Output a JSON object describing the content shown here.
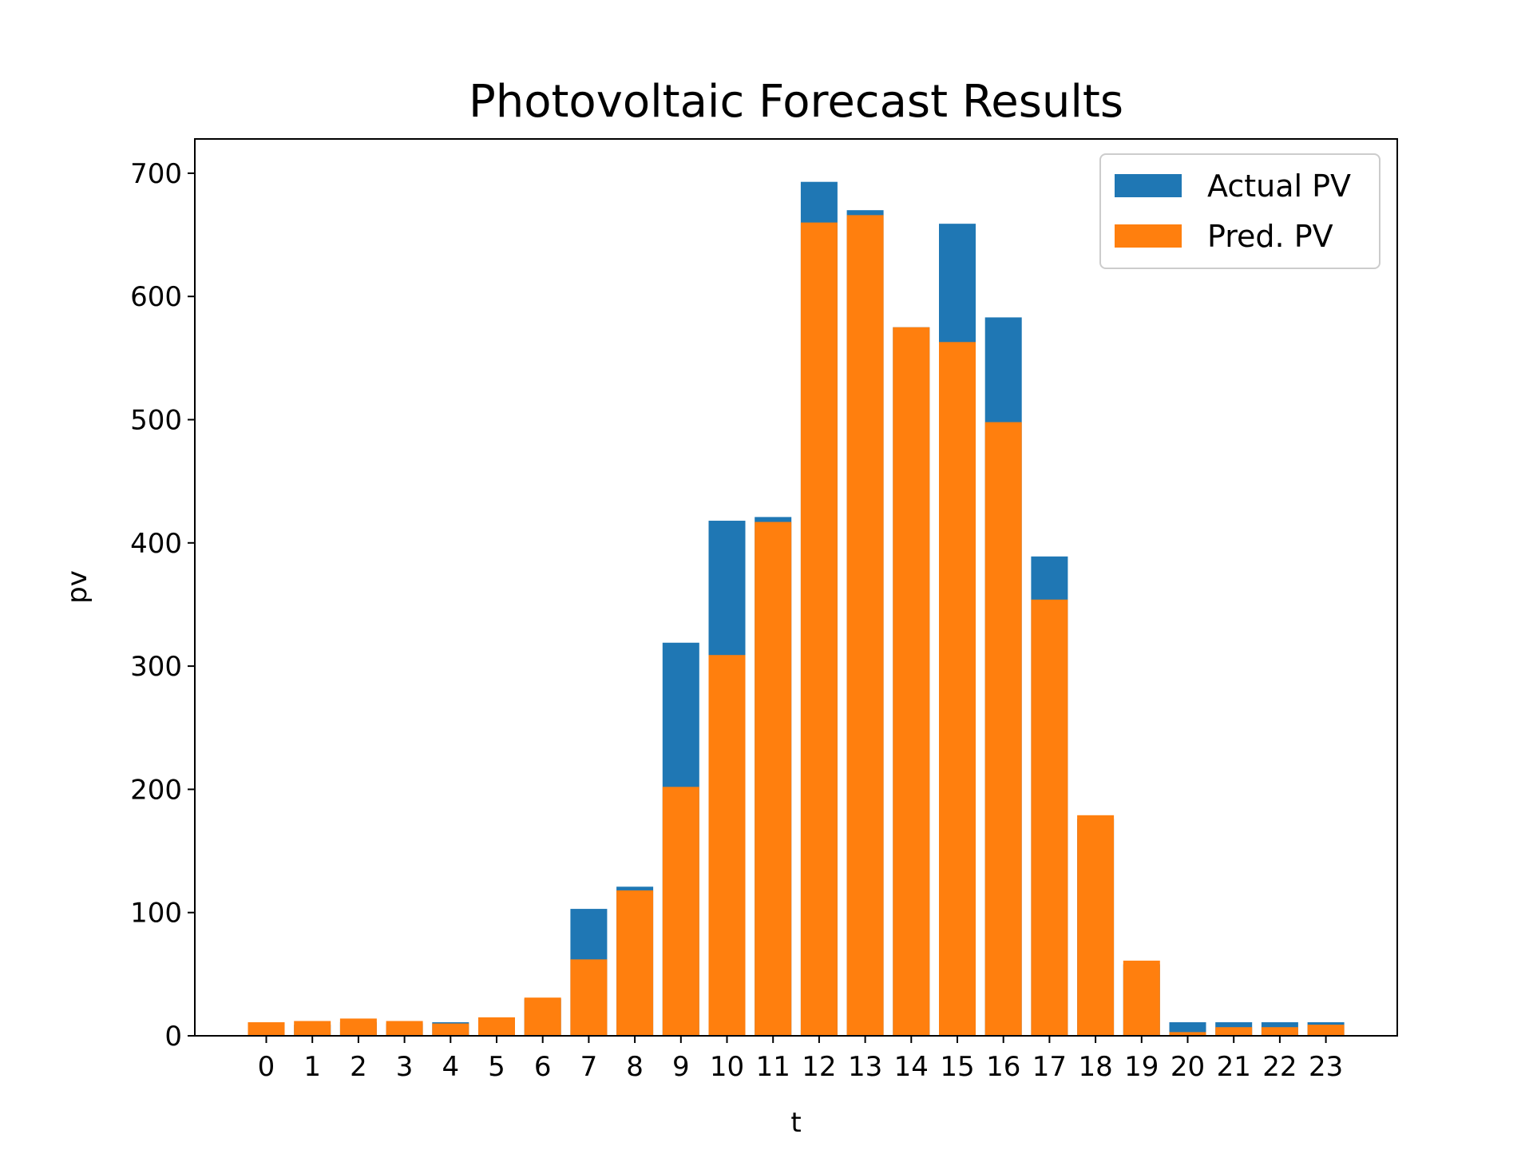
{
  "chart_data": {
    "type": "bar",
    "title": "Photovoltaic Forecast Results",
    "xlabel": "t",
    "ylabel": "pv",
    "categories": [
      "0",
      "1",
      "2",
      "3",
      "4",
      "5",
      "6",
      "7",
      "8",
      "9",
      "10",
      "11",
      "12",
      "13",
      "14",
      "15",
      "16",
      "17",
      "18",
      "19",
      "20",
      "21",
      "22",
      "23"
    ],
    "ylim": [
      0,
      730
    ],
    "yticks": [
      0,
      100,
      200,
      300,
      400,
      500,
      600,
      700
    ],
    "ytick_labels": [
      "0",
      "100",
      "200",
      "300",
      "400",
      "500",
      "600",
      "700"
    ],
    "series": [
      {
        "name": "Actual PV",
        "color": "#1f77b4",
        "values": [
          8,
          9,
          11,
          10,
          11,
          13,
          30,
          103,
          121,
          319,
          418,
          421,
          693,
          670,
          575,
          659,
          583,
          389,
          176,
          58,
          11,
          11,
          11,
          11
        ]
      },
      {
        "name": "Pred. PV",
        "color": "#ff7f0e",
        "values": [
          11,
          12,
          14,
          12,
          10,
          15,
          31,
          62,
          118,
          202,
          309,
          417,
          660,
          666,
          575,
          563,
          498,
          354,
          179,
          61,
          3,
          7,
          7,
          9
        ]
      }
    ],
    "grid": false,
    "legend_position": "top-right"
  }
}
